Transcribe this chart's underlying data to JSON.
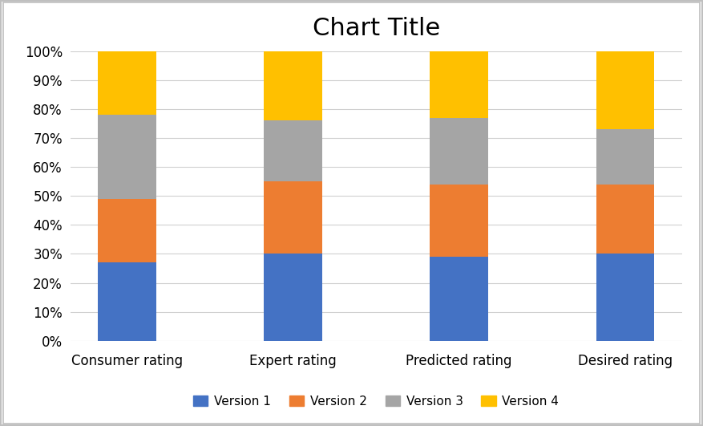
{
  "categories": [
    "Consumer rating",
    "Expert rating",
    "Predicted rating",
    "Desired rating"
  ],
  "series": {
    "Version 1": [
      0.27,
      0.3,
      0.29,
      0.3
    ],
    "Version 2": [
      0.22,
      0.25,
      0.25,
      0.24
    ],
    "Version 3": [
      0.29,
      0.21,
      0.23,
      0.19
    ],
    "Version 4": [
      0.22,
      0.24,
      0.23,
      0.27
    ]
  },
  "colors": {
    "Version 1": "#4472C4",
    "Version 2": "#ED7D31",
    "Version 3": "#A5A5A5",
    "Version 4": "#FFC000"
  },
  "title": "Chart Title",
  "title_fontsize": 22,
  "ylim": [
    0,
    1.0
  ],
  "yticks": [
    0.0,
    0.1,
    0.2,
    0.3,
    0.4,
    0.5,
    0.6,
    0.7,
    0.8,
    0.9,
    1.0
  ],
  "ytick_labels": [
    "0%",
    "10%",
    "20%",
    "30%",
    "40%",
    "50%",
    "60%",
    "70%",
    "80%",
    "90%",
    "100%"
  ],
  "bar_width": 0.35,
  "legend_fontsize": 11,
  "tick_fontsize": 12,
  "background_color": "#FFFFFF",
  "grid_color": "#D0D0D0",
  "border_color": "#BFBFBF"
}
